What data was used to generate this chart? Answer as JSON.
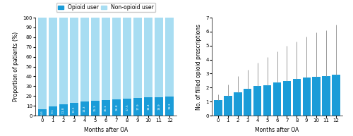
{
  "months": [
    0,
    1,
    2,
    3,
    4,
    5,
    6,
    7,
    8,
    9,
    10,
    11,
    12
  ],
  "opioid_pct": [
    6.6,
    9.1,
    11.8,
    13.1,
    14.3,
    15.3,
    16.1,
    16.8,
    17.5,
    17.9,
    18.4,
    18.9,
    19.3
  ],
  "rx_mean": [
    1.1,
    1.4,
    1.65,
    1.9,
    2.1,
    2.15,
    2.35,
    2.45,
    2.6,
    2.7,
    2.75,
    2.8,
    2.9
  ],
  "rx_upper": [
    1.5,
    2.2,
    2.8,
    3.3,
    3.8,
    4.2,
    4.6,
    5.0,
    5.3,
    5.65,
    5.95,
    6.1,
    6.5
  ],
  "color_opioid": "#1a9cd8",
  "color_nonopioid": "#a8ddf2",
  "color_bar_right": "#1a9cd8",
  "color_errorbar": "#999999",
  "ylabel_left": "Proportion of patients (%)",
  "ylabel_right": "No. of filled opioid prescriptions",
  "xlabel": "Months after OA",
  "legend_opioid": "Opioid user",
  "legend_nonopioid": "Non-opioid user",
  "ylim_left": [
    0,
    100
  ],
  "ylim_right": [
    0,
    7
  ],
  "yticks_left": [
    0,
    10,
    20,
    30,
    40,
    50,
    60,
    70,
    80,
    90,
    100
  ],
  "yticks_right": [
    0,
    1,
    2,
    3,
    4,
    5,
    6,
    7
  ]
}
